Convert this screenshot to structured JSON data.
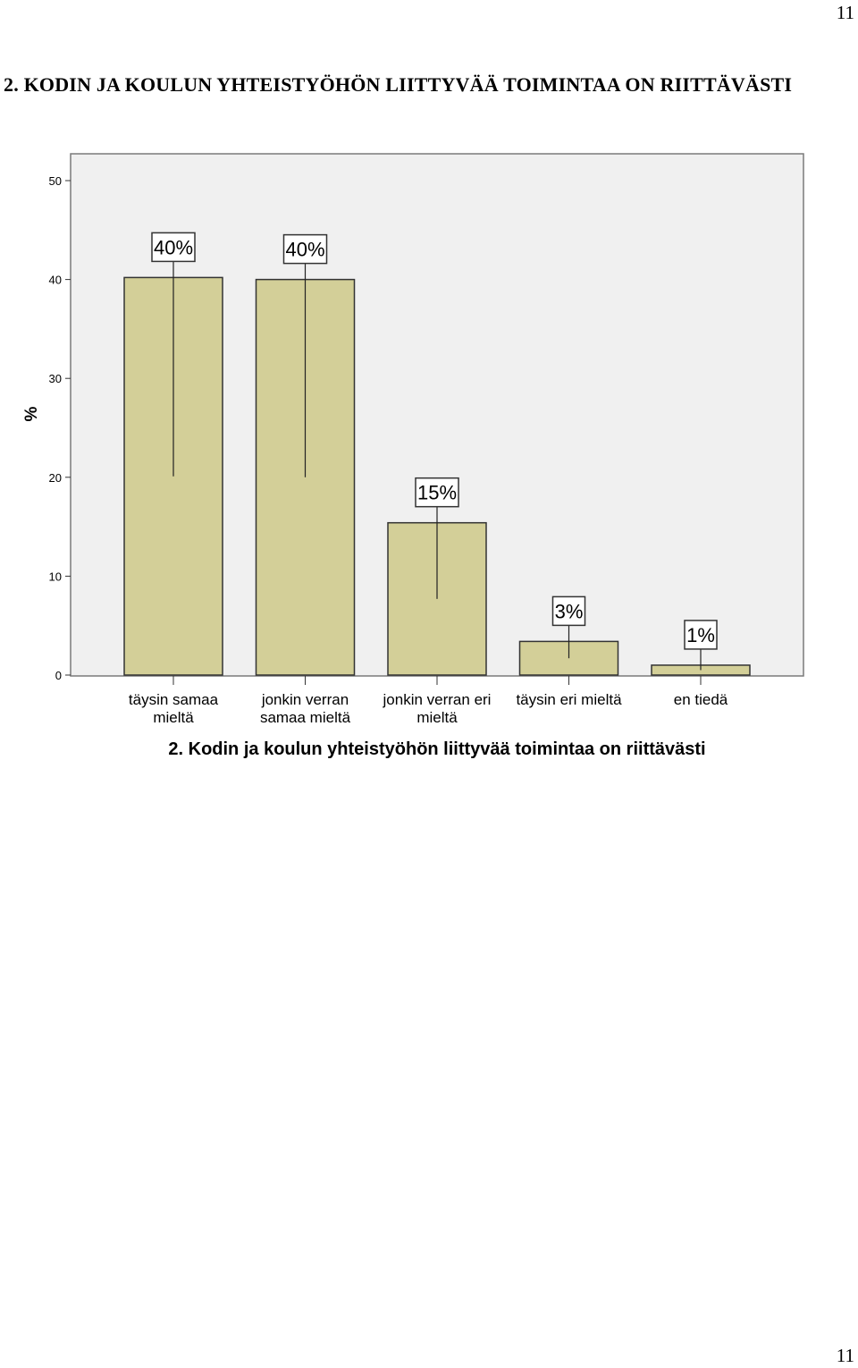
{
  "page": {
    "page_number_top": "11",
    "page_number_bottom": "11",
    "heading": "2. KODIN JA KOULUN YHTEISTYÖHÖN LIITTYVÄÄ TOIMINTAA ON RIITTÄVÄSTI"
  },
  "chart_data": {
    "type": "bar",
    "title": "2. Kodin ja koulun yhteistyöhön liittyvää toimintaa on riittävästi",
    "xlabel": "",
    "ylabel": "%",
    "ylim": [
      0,
      50
    ],
    "yticks": [
      0,
      10,
      20,
      30,
      40,
      50
    ],
    "grid": false,
    "categories": [
      [
        "täysin samaa",
        "mieltä"
      ],
      [
        "jonkin verran",
        "samaa mieltä"
      ],
      [
        "jonkin verran eri",
        "mieltä"
      ],
      [
        "täysin eri mieltä"
      ],
      [
        "en tiedä"
      ]
    ],
    "values": [
      40.2,
      40.0,
      15.4,
      3.4,
      1.0
    ],
    "value_labels": [
      "40%",
      "40%",
      "15%",
      "3%",
      "1%"
    ],
    "colors": {
      "bar_fill": "#d3cf98",
      "bar_stroke": "#333333",
      "plot_background": "#f0f0f0",
      "frame": "#7a7a7a"
    }
  }
}
